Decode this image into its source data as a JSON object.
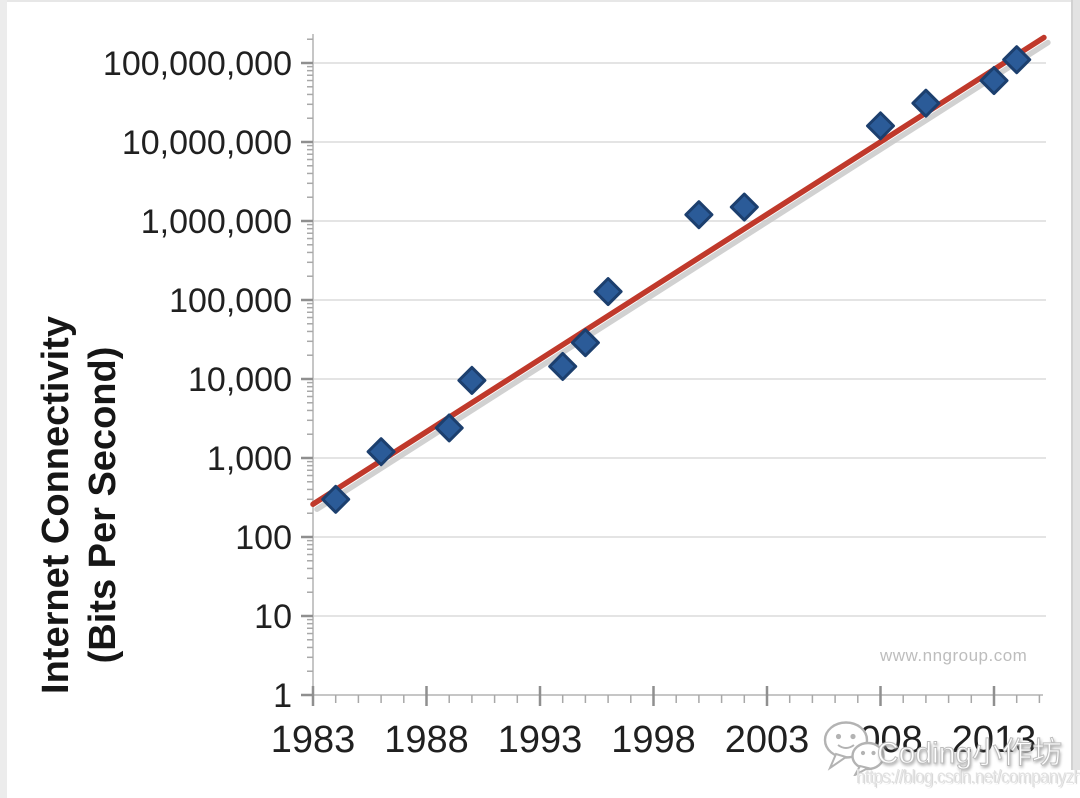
{
  "page": {
    "background": "#ffffff"
  },
  "chart_data": {
    "type": "scatter",
    "title": "",
    "y_axis_title_lines": [
      "Internet Connectivity",
      "(Bits Per Second)"
    ],
    "xlabel": "",
    "ylabel": "Internet Connectivity (Bits Per Second)",
    "x_tick_labels": [
      "1983",
      "1988",
      "1993",
      "1998",
      "2003",
      "2008",
      "2013"
    ],
    "y_tick_labels": [
      "100,000,000",
      "10,000,000",
      "1,000,000",
      "100,000",
      "10,000",
      "1,000",
      "100",
      "10",
      "1"
    ],
    "x_range": [
      1983,
      2015.3
    ],
    "y_range": [
      1,
      230000000
    ],
    "y_scale": "log",
    "grid": "horizontal-major-only",
    "legend": "none",
    "point_shape": "diamond",
    "point_color": "#2b5b98",
    "point_border_color": "#1c3f6e",
    "points": [
      {
        "year": 1984,
        "bps": 300
      },
      {
        "year": 1986,
        "bps": 1200
      },
      {
        "year": 1989,
        "bps": 2400
      },
      {
        "year": 1990,
        "bps": 9600
      },
      {
        "year": 1994,
        "bps": 14400
      },
      {
        "year": 1995,
        "bps": 28800
      },
      {
        "year": 1996,
        "bps": 128000
      },
      {
        "year": 2000,
        "bps": 1200000
      },
      {
        "year": 2002,
        "bps": 1500000
      },
      {
        "year": 2008,
        "bps": 16000000
      },
      {
        "year": 2010,
        "bps": 31000000
      },
      {
        "year": 2013,
        "bps": 60000000
      },
      {
        "year": 2014,
        "bps": 110000000
      }
    ],
    "trendline": {
      "type": "linear-on-log-scale",
      "color": "#c0392b",
      "shadow_color": "#c9c9c9",
      "start": {
        "year": 1983,
        "bps": 260
      },
      "end": {
        "year": 2015.2,
        "bps": 210000000
      }
    },
    "gridline_color": "#e4e4e4",
    "axis_color": "#c6c6c6",
    "tick_color": "#8f8f8f"
  },
  "watermarks": {
    "nngroup": "www.nngroup.com",
    "csdn_name": "Coding小作坊",
    "csdn_url": "https://blog.csdn.net/companyzh"
  }
}
